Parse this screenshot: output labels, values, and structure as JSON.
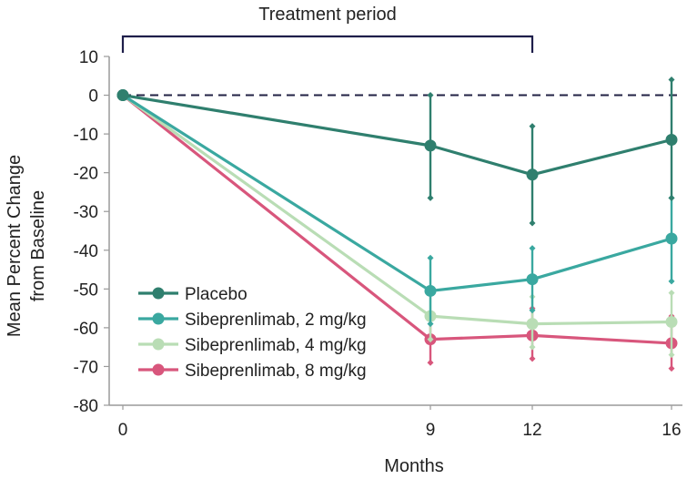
{
  "chart_data": {
    "type": "line",
    "title": "",
    "annotation": "Treatment period",
    "annotation_range": [
      0,
      12
    ],
    "xlabel": "Months",
    "ylabel_lines": [
      "Mean Percent Change",
      "from Baseline"
    ],
    "ylim": [
      -80,
      10
    ],
    "yticks": [
      10,
      0,
      -10,
      -20,
      -30,
      -40,
      -50,
      -60,
      -70,
      -80
    ],
    "ytick_labels": [
      "10",
      "0",
      "-10",
      "-20",
      "-30",
      "-40",
      "-50",
      "-60",
      "-70",
      "-80"
    ],
    "xticks": [
      0,
      9,
      12,
      16
    ],
    "xtick_labels": [
      "0",
      "9",
      "12",
      "16"
    ],
    "x": [
      0,
      9,
      12,
      16
    ],
    "reference_line": 0,
    "legend_position": "lower-left",
    "series": [
      {
        "name": "Placebo",
        "color": "#2f7f6e",
        "values": [
          0,
          -13,
          -20.5,
          -11.5
        ],
        "error_low": [
          null,
          -26.5,
          -33,
          -26.5
        ],
        "error_high": [
          null,
          0,
          -8,
          4
        ]
      },
      {
        "name": "Sibeprenlimab, 2 mg/kg",
        "color": "#3aa8a0",
        "values": [
          0,
          -50.5,
          -47.5,
          -37
        ],
        "error_low": [
          null,
          -59,
          -55.5,
          -48
        ],
        "error_high": [
          null,
          -42,
          -39.5,
          -26.5
        ]
      },
      {
        "name": "Sibeprenlimab, 4 mg/kg",
        "color": "#b9ddb5",
        "values": [
          0,
          -57,
          -59,
          -58.5
        ],
        "error_low": [
          null,
          -63,
          -65,
          -67
        ],
        "error_high": [
          null,
          -51,
          -52,
          -51
        ]
      },
      {
        "name": "Sibeprenlimab, 8 mg/kg",
        "color": "#d8567c",
        "values": [
          0,
          -63,
          -62,
          -64
        ],
        "error_low": [
          null,
          -69,
          -68,
          -70.5
        ],
        "error_high": [
          null,
          -56.5,
          -55,
          -57
        ]
      }
    ]
  },
  "colors": {
    "axis": "#9a9a9a",
    "bracket": "#1e1e4a",
    "zero_line": "#222244"
  }
}
